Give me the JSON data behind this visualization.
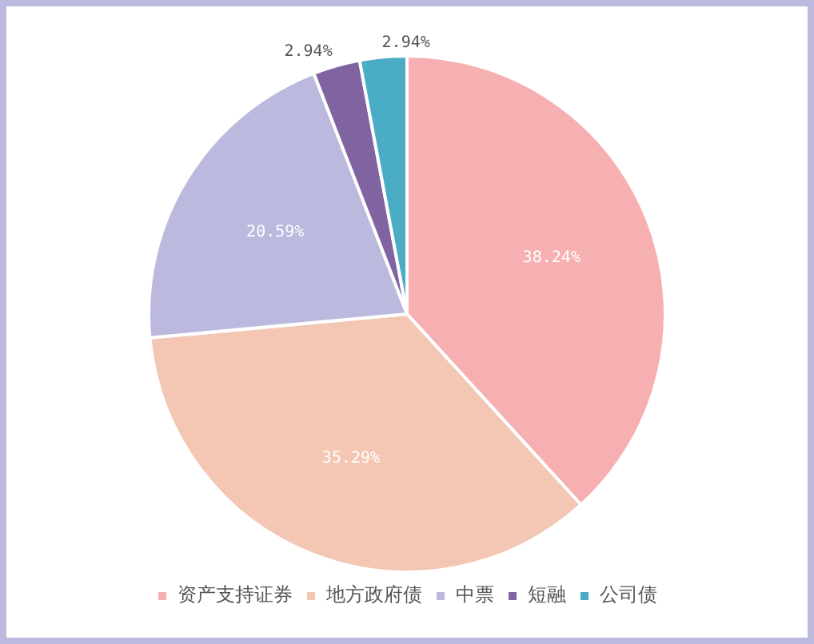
{
  "chart_data": {
    "type": "pie",
    "categories": [
      "资产支持证券",
      "地方政府债",
      "中票",
      "短融",
      "公司债"
    ],
    "values": [
      38.24,
      35.29,
      20.59,
      2.94,
      2.94
    ],
    "value_labels": [
      "38.24%",
      "35.29%",
      "20.59%",
      "2.94%",
      "2.94%"
    ],
    "colors": [
      "#f7b0b1",
      "#f3c7b4",
      "#bbb9dd",
      "#8064a2",
      "#4bacc6"
    ],
    "legend": "bottom"
  }
}
